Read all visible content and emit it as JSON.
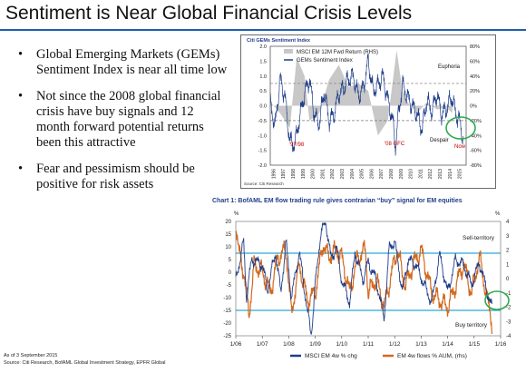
{
  "slide": {
    "title": "Sentiment is Near Global Financial Crisis Levels",
    "bullets": [
      "Global Emerging Markets (GEMs) Sentiment Index is near all time low",
      "Not since the 2008 global financial crisis have buy signals and 12 month forward potential returns been this attractive",
      "Fear and pessimism should be positive for risk assets"
    ],
    "bullet_glyph": "•",
    "footnote_date": "As of 3 September 2015",
    "footnote_sources": "Source: Citi Research, BofAML Global Investment Strategy, EPFR Global"
  },
  "chart_data": [
    {
      "type": "line",
      "title": "Citi GEMs Sentiment Index",
      "source": "Source: Citi Research",
      "series": [
        {
          "name": "MSCI EM 12M Fwd Return (RHS)",
          "color": "#c8c8c8",
          "style": "area"
        },
        {
          "name": "GEMs Sentiment Index",
          "color": "#1f3e8a",
          "style": "line"
        }
      ],
      "x_ticks": [
        "1996",
        "1997",
        "1998",
        "1999",
        "2000",
        "2001",
        "2002",
        "2003",
        "2004",
        "2005",
        "2006",
        "2007",
        "2008",
        "2009",
        "2010",
        "2011",
        "2012",
        "2013",
        "2014",
        "2015"
      ],
      "xlim": [
        1996,
        2016
      ],
      "left_ticks": [
        "2.0",
        "1.5",
        "1.0",
        "0.5",
        "0.0",
        "-0.5",
        "-1.0",
        "-1.5",
        "-2.0"
      ],
      "ylim_left": [
        -2.0,
        2.0
      ],
      "right_ticks": [
        "80%",
        "60%",
        "40%",
        "20%",
        "0%",
        "-20%",
        "-40%",
        "-60%",
        "-80%"
      ],
      "ylim_right": [
        -80,
        80
      ],
      "reference_lines": [
        0.75,
        -0.5
      ],
      "annotations": {
        "euphoria": "Euphoria",
        "despair": "Despair",
        "crisis_9798": "'97/98",
        "crisis_08": "'08 GFC",
        "now": "Now"
      },
      "sentiment_keypoints": [
        [
          1996.0,
          0.1
        ],
        [
          1996.5,
          -0.7
        ],
        [
          1997.0,
          0.9
        ],
        [
          1997.5,
          0.3
        ],
        [
          1998.0,
          -1.2
        ],
        [
          1998.5,
          -1.3
        ],
        [
          1999.0,
          -0.4
        ],
        [
          1999.5,
          0.4
        ],
        [
          2000.0,
          0.9
        ],
        [
          2000.5,
          -0.3
        ],
        [
          2001.0,
          -0.6
        ],
        [
          2001.5,
          0.5
        ],
        [
          2002.0,
          -0.5
        ],
        [
          2002.5,
          -0.3
        ],
        [
          2003.0,
          0.4
        ],
        [
          2003.5,
          0.6
        ],
        [
          2004.0,
          0.9
        ],
        [
          2004.5,
          1.0
        ],
        [
          2005.0,
          0.3
        ],
        [
          2005.5,
          0.6
        ],
        [
          2006.0,
          1.5
        ],
        [
          2006.5,
          0.5
        ],
        [
          2007.0,
          0.7
        ],
        [
          2007.5,
          1.0
        ],
        [
          2008.0,
          0.2
        ],
        [
          2008.5,
          -0.5
        ],
        [
          2008.8,
          -1.4
        ],
        [
          2009.0,
          -0.5
        ],
        [
          2009.5,
          0.7
        ],
        [
          2010.0,
          0.3
        ],
        [
          2010.5,
          0.0
        ],
        [
          2011.0,
          -0.3
        ],
        [
          2011.5,
          -0.8
        ],
        [
          2012.0,
          0.2
        ],
        [
          2012.5,
          -0.2
        ],
        [
          2013.0,
          0.4
        ],
        [
          2013.5,
          -0.3
        ],
        [
          2014.0,
          -0.1
        ],
        [
          2014.5,
          0.3
        ],
        [
          2015.0,
          -0.3
        ],
        [
          2015.4,
          -0.6
        ],
        [
          2015.67,
          -1.1
        ]
      ],
      "return_keypoints": [
        [
          1996.0,
          5
        ],
        [
          1997.0,
          -10
        ],
        [
          1998.0,
          -30
        ],
        [
          1998.7,
          65
        ],
        [
          1999.5,
          40
        ],
        [
          2000.0,
          -20
        ],
        [
          2001.0,
          -10
        ],
        [
          2002.0,
          35
        ],
        [
          2003.0,
          55
        ],
        [
          2004.0,
          25
        ],
        [
          2005.0,
          30
        ],
        [
          2006.0,
          20
        ],
        [
          2007.0,
          -40
        ],
        [
          2008.0,
          -20
        ],
        [
          2008.9,
          75
        ],
        [
          2009.5,
          20
        ],
        [
          2010.0,
          5
        ],
        [
          2011.0,
          -10
        ],
        [
          2012.0,
          5
        ],
        [
          2013.0,
          -5
        ],
        [
          2014.0,
          -3
        ],
        [
          2014.6,
          -10
        ]
      ]
    },
    {
      "type": "line",
      "title": "Chart 1: BofAML EM flow trading rule gives contrarian “buy” signal for EM equities",
      "series": [
        {
          "name": "MSCI EM 4w % chg",
          "color": "#1f3e8a"
        },
        {
          "name": "EM 4w flows % AUM, (rhs)",
          "color": "#d2691e"
        }
      ],
      "x_ticks": [
        "1/06",
        "1/07",
        "1/08",
        "1/09",
        "1/10",
        "1/11",
        "1/12",
        "1/13",
        "1/14",
        "1/15",
        "1/16"
      ],
      "xlim": [
        2006.0,
        2016.0
      ],
      "left_unit": "%",
      "left_ticks": [
        "20",
        "15",
        "10",
        "5",
        "0",
        "-5",
        "-10",
        "-15",
        "-20",
        "-25"
      ],
      "ylim_left": [
        -25,
        20
      ],
      "right_unit": "%",
      "right_ticks": [
        "4",
        "3",
        "2",
        "1",
        "0",
        "-1",
        "-2",
        "-3",
        "-4"
      ],
      "ylim_right": [
        -4,
        4
      ],
      "reference_lines_left": [
        7.5,
        -15
      ],
      "annotations": {
        "sell": "Sell-territory",
        "buy": "Buy territory"
      },
      "msci_keypoints": [
        [
          2006.0,
          -3
        ],
        [
          2006.3,
          12
        ],
        [
          2006.4,
          -10
        ],
        [
          2006.6,
          5
        ],
        [
          2007.0,
          3
        ],
        [
          2007.2,
          -7
        ],
        [
          2007.5,
          8
        ],
        [
          2007.7,
          -8
        ],
        [
          2007.9,
          12
        ],
        [
          2008.1,
          -10
        ],
        [
          2008.4,
          8
        ],
        [
          2008.7,
          -15
        ],
        [
          2008.85,
          -25
        ],
        [
          2009.0,
          -5
        ],
        [
          2009.2,
          15
        ],
        [
          2009.4,
          20
        ],
        [
          2009.6,
          5
        ],
        [
          2009.8,
          10
        ],
        [
          2010.0,
          -3
        ],
        [
          2010.3,
          -12
        ],
        [
          2010.5,
          8
        ],
        [
          2010.8,
          -3
        ],
        [
          2011.0,
          4
        ],
        [
          2011.3,
          -3
        ],
        [
          2011.6,
          -18
        ],
        [
          2011.8,
          10
        ],
        [
          2012.0,
          12
        ],
        [
          2012.3,
          -8
        ],
        [
          2012.5,
          5
        ],
        [
          2012.8,
          3
        ],
        [
          2013.0,
          -2
        ],
        [
          2013.4,
          -12
        ],
        [
          2013.7,
          7
        ],
        [
          2014.0,
          -8
        ],
        [
          2014.3,
          5
        ],
        [
          2014.6,
          3
        ],
        [
          2014.9,
          -5
        ],
        [
          2015.2,
          4
        ],
        [
          2015.5,
          -8
        ],
        [
          2015.67,
          -14
        ]
      ],
      "flow_keypoints": [
        [
          2006.0,
          4.0
        ],
        [
          2006.1,
          2.0
        ],
        [
          2006.3,
          0.5
        ],
        [
          2006.5,
          -2.5
        ],
        [
          2006.7,
          1.0
        ],
        [
          2007.0,
          0.5
        ],
        [
          2007.3,
          -1.0
        ],
        [
          2007.6,
          1.5
        ],
        [
          2007.9,
          2.0
        ],
        [
          2008.1,
          -2.5
        ],
        [
          2008.4,
          1.0
        ],
        [
          2008.7,
          -1.5
        ],
        [
          2009.0,
          -1.0
        ],
        [
          2009.3,
          2.5
        ],
        [
          2009.5,
          1.5
        ],
        [
          2009.8,
          2.0
        ],
        [
          2010.0,
          1.5
        ],
        [
          2010.3,
          -1.0
        ],
        [
          2010.6,
          1.5
        ],
        [
          2010.9,
          2.0
        ],
        [
          2011.0,
          -1.0
        ],
        [
          2011.3,
          0.0
        ],
        [
          2011.6,
          -2.0
        ],
        [
          2011.9,
          0.5
        ],
        [
          2012.1,
          2.0
        ],
        [
          2012.4,
          -0.5
        ],
        [
          2012.7,
          1.0
        ],
        [
          2013.0,
          2.0
        ],
        [
          2013.4,
          -1.0
        ],
        [
          2013.7,
          -1.5
        ],
        [
          2014.0,
          -2.0
        ],
        [
          2014.3,
          -0.5
        ],
        [
          2014.6,
          1.0
        ],
        [
          2014.9,
          -1.0
        ],
        [
          2015.2,
          1.5
        ],
        [
          2015.5,
          -1.5
        ],
        [
          2015.67,
          -3.0
        ]
      ]
    }
  ]
}
